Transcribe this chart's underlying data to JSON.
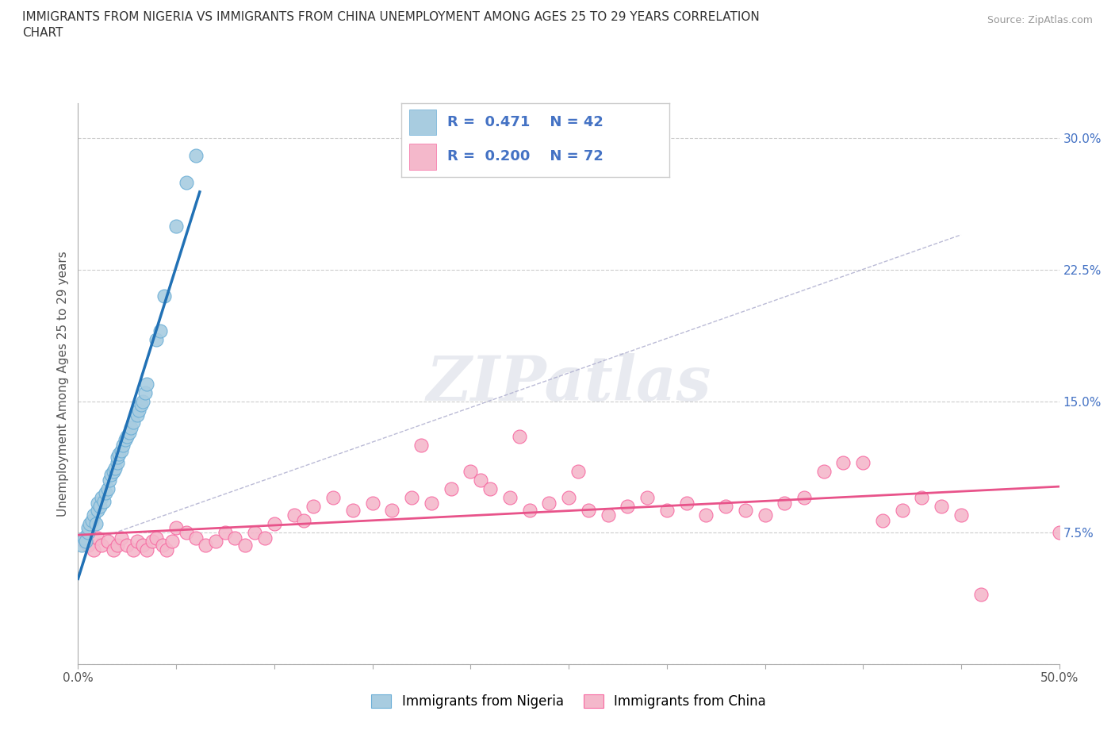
{
  "title_line1": "IMMIGRANTS FROM NIGERIA VS IMMIGRANTS FROM CHINA UNEMPLOYMENT AMONG AGES 25 TO 29 YEARS CORRELATION",
  "title_line2": "CHART",
  "source_text": "Source: ZipAtlas.com",
  "ylabel": "Unemployment Among Ages 25 to 29 years",
  "watermark": "ZIPatlas",
  "xlim": [
    0.0,
    0.5
  ],
  "ylim": [
    0.0,
    0.32
  ],
  "xticks": [
    0.0,
    0.05,
    0.1,
    0.15,
    0.2,
    0.25,
    0.3,
    0.35,
    0.4,
    0.45,
    0.5
  ],
  "xtick_label_positions": [
    0.0,
    0.5
  ],
  "xticklabels_shown": [
    "0.0%",
    "50.0%"
  ],
  "yticks": [
    0.0,
    0.075,
    0.15,
    0.225,
    0.3
  ],
  "yticklabels": [
    "",
    "7.5%",
    "15.0%",
    "22.5%",
    "30.0%"
  ],
  "nigeria_color": "#a8cce0",
  "nigeria_edge_color": "#6baed6",
  "china_color": "#f4b8cb",
  "china_edge_color": "#f768a1",
  "nigeria_line_color": "#2171b5",
  "china_line_color": "#e8538a",
  "R_nigeria": 0.471,
  "N_nigeria": 42,
  "R_china": 0.2,
  "N_china": 72,
  "legend_label_nigeria": "Immigrants from Nigeria",
  "legend_label_china": "Immigrants from China",
  "nigeria_x": [
    0.002,
    0.003,
    0.004,
    0.005,
    0.005,
    0.006,
    0.007,
    0.008,
    0.009,
    0.01,
    0.01,
    0.011,
    0.012,
    0.013,
    0.014,
    0.015,
    0.016,
    0.017,
    0.018,
    0.019,
    0.02,
    0.02,
    0.021,
    0.022,
    0.023,
    0.024,
    0.025,
    0.026,
    0.027,
    0.028,
    0.03,
    0.031,
    0.032,
    0.033,
    0.034,
    0.035,
    0.04,
    0.042,
    0.044,
    0.05,
    0.055,
    0.06
  ],
  "nigeria_y": [
    0.068,
    0.072,
    0.07,
    0.075,
    0.078,
    0.08,
    0.082,
    0.085,
    0.08,
    0.088,
    0.092,
    0.09,
    0.095,
    0.093,
    0.098,
    0.1,
    0.105,
    0.108,
    0.11,
    0.112,
    0.115,
    0.118,
    0.12,
    0.122,
    0.125,
    0.128,
    0.13,
    0.132,
    0.135,
    0.138,
    0.142,
    0.145,
    0.148,
    0.15,
    0.155,
    0.16,
    0.185,
    0.19,
    0.21,
    0.25,
    0.275,
    0.29
  ],
  "china_x": [
    0.003,
    0.005,
    0.008,
    0.01,
    0.012,
    0.015,
    0.018,
    0.02,
    0.022,
    0.025,
    0.028,
    0.03,
    0.033,
    0.035,
    0.038,
    0.04,
    0.043,
    0.045,
    0.048,
    0.05,
    0.055,
    0.06,
    0.065,
    0.07,
    0.075,
    0.08,
    0.085,
    0.09,
    0.095,
    0.1,
    0.11,
    0.115,
    0.12,
    0.13,
    0.14,
    0.15,
    0.16,
    0.17,
    0.175,
    0.18,
    0.19,
    0.2,
    0.205,
    0.21,
    0.22,
    0.225,
    0.23,
    0.24,
    0.25,
    0.255,
    0.26,
    0.27,
    0.28,
    0.29,
    0.3,
    0.31,
    0.32,
    0.33,
    0.34,
    0.35,
    0.36,
    0.37,
    0.38,
    0.39,
    0.4,
    0.41,
    0.42,
    0.43,
    0.44,
    0.45,
    0.46,
    0.5
  ],
  "china_y": [
    0.07,
    0.068,
    0.065,
    0.072,
    0.068,
    0.07,
    0.065,
    0.068,
    0.072,
    0.068,
    0.065,
    0.07,
    0.068,
    0.065,
    0.07,
    0.072,
    0.068,
    0.065,
    0.07,
    0.078,
    0.075,
    0.072,
    0.068,
    0.07,
    0.075,
    0.072,
    0.068,
    0.075,
    0.072,
    0.08,
    0.085,
    0.082,
    0.09,
    0.095,
    0.088,
    0.092,
    0.088,
    0.095,
    0.125,
    0.092,
    0.1,
    0.11,
    0.105,
    0.1,
    0.095,
    0.13,
    0.088,
    0.092,
    0.095,
    0.11,
    0.088,
    0.085,
    0.09,
    0.095,
    0.088,
    0.092,
    0.085,
    0.09,
    0.088,
    0.085,
    0.092,
    0.095,
    0.11,
    0.115,
    0.115,
    0.082,
    0.088,
    0.095,
    0.09,
    0.085,
    0.04,
    0.075
  ],
  "dashed_line": {
    "x0": 0.001,
    "y0": 0.068,
    "x1": 0.45,
    "y1": 0.245
  }
}
